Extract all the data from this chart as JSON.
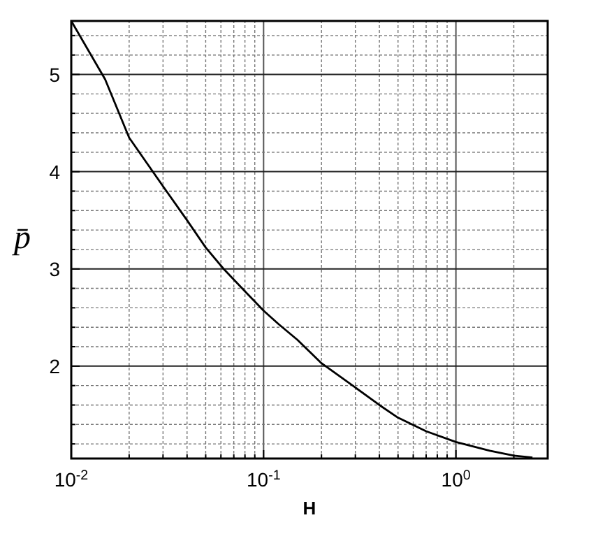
{
  "chart_data": {
    "type": "line",
    "xlabel": "H",
    "ylabel": "p̄",
    "log": "x",
    "grid": true,
    "marker": "none",
    "line_style": "solid",
    "x": [
      0.01,
      0.015,
      0.02,
      0.03,
      0.04,
      0.05,
      0.062,
      0.08,
      0.1,
      0.12,
      0.15,
      0.2,
      0.3,
      0.4,
      0.5,
      0.7,
      1,
      1.5,
      2,
      2.5
    ],
    "series": [
      {
        "color": "#000000",
        "values": [
          5.55,
          4.95,
          4.35,
          3.85,
          3.5,
          3.22,
          3,
          2.77,
          2.57,
          2.43,
          2.27,
          2.03,
          1.78,
          1.6,
          1.47,
          1.33,
          1.22,
          1.13,
          1.08,
          1.06
        ]
      }
    ],
    "xlim": [
      0.01,
      3
    ],
    "ylim": [
      1.05,
      5.55
    ],
    "xticks": [
      {
        "value": 0.01,
        "label": "10$^{-2}$"
      },
      {
        "value": 0.02,
        "label": null
      },
      {
        "value": 0.03,
        "label": null
      },
      {
        "value": 0.04,
        "label": null
      },
      {
        "value": 0.05,
        "label": null
      },
      {
        "value": 0.06,
        "label": null
      },
      {
        "value": 0.07,
        "label": null
      },
      {
        "value": 0.08,
        "label": null
      },
      {
        "value": 0.09,
        "label": null
      },
      {
        "value": 0.1,
        "label": "10$^{-1}$"
      },
      {
        "value": 0.2,
        "label": null
      },
      {
        "value": 0.3,
        "label": null
      },
      {
        "value": 0.4,
        "label": null
      },
      {
        "value": 0.5,
        "label": null
      },
      {
        "value": 0.6,
        "label": null
      },
      {
        "value": 0.7,
        "label": null
      },
      {
        "value": 0.8,
        "label": null
      },
      {
        "value": 0.9,
        "label": null
      },
      {
        "value": 1,
        "label": "10$^{0}$"
      },
      {
        "value": 2,
        "label": null
      }
    ],
    "yticks": [
      {
        "value": 1.2,
        "label": null
      },
      {
        "value": 1.4,
        "label": null
      },
      {
        "value": 1.6,
        "label": null
      },
      {
        "value": 1.8,
        "label": null
      },
      2,
      {
        "value": 2.2,
        "label": null
      },
      {
        "value": 2.4,
        "label": null
      },
      {
        "value": 2.6,
        "label": null
      },
      {
        "value": 2.8,
        "label": null
      },
      3,
      {
        "value": 3.2,
        "label": null
      },
      {
        "value": 3.4,
        "label": null
      },
      {
        "value": 3.6,
        "label": null
      },
      {
        "value": 3.8,
        "label": null
      },
      4,
      {
        "value": 4.2,
        "label": null
      },
      {
        "value": 4.4,
        "label": null
      },
      {
        "value": 4.6,
        "label": null
      },
      {
        "value": 4.8,
        "label": null
      },
      5,
      {
        "value": 5.2,
        "label": null
      },
      {
        "value": 5.4,
        "label": null
      }
    ]
  }
}
